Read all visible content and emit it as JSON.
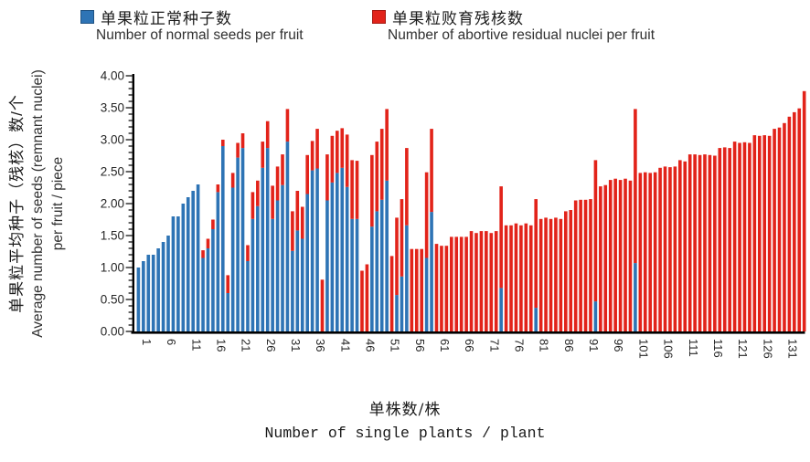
{
  "legend": {
    "normal": {
      "zh": "单果粒正常种子数",
      "en": "Number of normal seeds per fruit",
      "color": "#2E74B5"
    },
    "abortive": {
      "zh": "单果粒败育残核数",
      "en": "Number of abortive residual nuclei per fruit",
      "color": "#E2231A"
    }
  },
  "y_axis": {
    "title_zh": "单果粒平均种子（残核）数/个",
    "title_en_line1": "Average number of seeds (remnant nuclei)",
    "title_en_line2": "per fruit / piece",
    "tick_labels": [
      "0.00",
      "0.50",
      "1.00",
      "1.50",
      "2.00",
      "2.50",
      "3.00",
      "3.50",
      "4.00"
    ]
  },
  "x_axis": {
    "title_zh": "单株数/株",
    "title_en": "Number of single plants / plant"
  },
  "chart_data": {
    "type": "bar",
    "stacked": true,
    "title": "",
    "xlabel": "单株数/株 Number of single plants / plant",
    "ylabel": "单果粒平均种子（残核）数/个 Average number of seeds (remnant nuclei) per fruit / piece",
    "x_description": "single plant index 1..135",
    "n_bars": 135,
    "ylim": [
      0,
      4
    ],
    "ytick_major_step": 0.5,
    "ytick_minor_step": 0.1,
    "grid": false,
    "legend_position": "top",
    "xticks": [
      1,
      6,
      11,
      16,
      21,
      26,
      31,
      36,
      41,
      46,
      51,
      56,
      61,
      66,
      71,
      76,
      81,
      86,
      91,
      96,
      101,
      106,
      111,
      116,
      121,
      126,
      131
    ],
    "series": [
      {
        "name": "单果粒正常种子数 Number of normal seeds per fruit",
        "color": "#2E74B5",
        "values": [
          1.0,
          1.1,
          1.2,
          1.2,
          1.3,
          1.4,
          1.5,
          1.8,
          1.8,
          2.0,
          2.1,
          2.2,
          2.3,
          1.15,
          1.3,
          1.6,
          2.18,
          2.9,
          0.6,
          2.25,
          2.72,
          2.87,
          1.1,
          1.76,
          1.96,
          2.56,
          2.87,
          1.76,
          2.05,
          2.29,
          2.97,
          1.26,
          1.58,
          1.45,
          2.15,
          2.52,
          2.55,
          0,
          2.05,
          2.33,
          2.48,
          2.56,
          2.26,
          1.76,
          1.76,
          0,
          0,
          1.64,
          1.88,
          2.06,
          2.36,
          0,
          0.57,
          0.86,
          1.66,
          0,
          0,
          0,
          1.15,
          1.87,
          0,
          0,
          0,
          0,
          0,
          0,
          0,
          0,
          0,
          0,
          0,
          0,
          0,
          0.68,
          0,
          0,
          0,
          0,
          0,
          0,
          0.37,
          0,
          0,
          0,
          0,
          0,
          0,
          0,
          0,
          0,
          0,
          0,
          0.47,
          0,
          0,
          0,
          0,
          0,
          0,
          0,
          1.07,
          0,
          0,
          0,
          0,
          0,
          0,
          0,
          0,
          0,
          0,
          0,
          0,
          0,
          0,
          0,
          0,
          0,
          0,
          0,
          0,
          0,
          0,
          0,
          0,
          0,
          0,
          0,
          0,
          0,
          0,
          0,
          0,
          0,
          0
        ]
      },
      {
        "name": "单果粒败育残核数 Number of abortive residual nuclei per fruit",
        "color": "#E2231A",
        "values": [
          0,
          0,
          0,
          0,
          0,
          0,
          0,
          0,
          0,
          0,
          0,
          0,
          0,
          0.12,
          0.15,
          0.15,
          0.12,
          0.1,
          0.28,
          0.23,
          0.23,
          0.23,
          0.25,
          0.42,
          0.4,
          0.41,
          0.42,
          0.52,
          0.53,
          0.48,
          0.51,
          0.62,
          0.62,
          0.5,
          0.61,
          0.46,
          0.62,
          0.81,
          0.72,
          0.73,
          0.66,
          0.62,
          0.82,
          0.92,
          0.91,
          0.95,
          1.05,
          1.12,
          1.09,
          1.11,
          1.12,
          1.18,
          1.21,
          1.21,
          1.21,
          1.29,
          1.29,
          1.29,
          1.34,
          1.3,
          1.37,
          1.34,
          1.34,
          1.48,
          1.48,
          1.48,
          1.48,
          1.57,
          1.54,
          1.57,
          1.57,
          1.54,
          1.57,
          1.59,
          1.66,
          1.66,
          1.69,
          1.66,
          1.69,
          1.66,
          1.7,
          1.76,
          1.78,
          1.76,
          1.78,
          1.76,
          1.88,
          1.9,
          2.05,
          2.06,
          2.06,
          2.07,
          2.21,
          2.27,
          2.29,
          2.37,
          2.39,
          2.37,
          2.39,
          2.36,
          2.41,
          2.48,
          2.49,
          2.48,
          2.49,
          2.56,
          2.58,
          2.57,
          2.58,
          2.68,
          2.66,
          2.77,
          2.77,
          2.76,
          2.77,
          2.76,
          2.75,
          2.87,
          2.88,
          2.87,
          2.97,
          2.95,
          2.96,
          2.95,
          3.07,
          3.06,
          3.07,
          3.06,
          3.17,
          3.19,
          3.26,
          3.36,
          3.43,
          3.49,
          3.76
        ]
      }
    ]
  }
}
